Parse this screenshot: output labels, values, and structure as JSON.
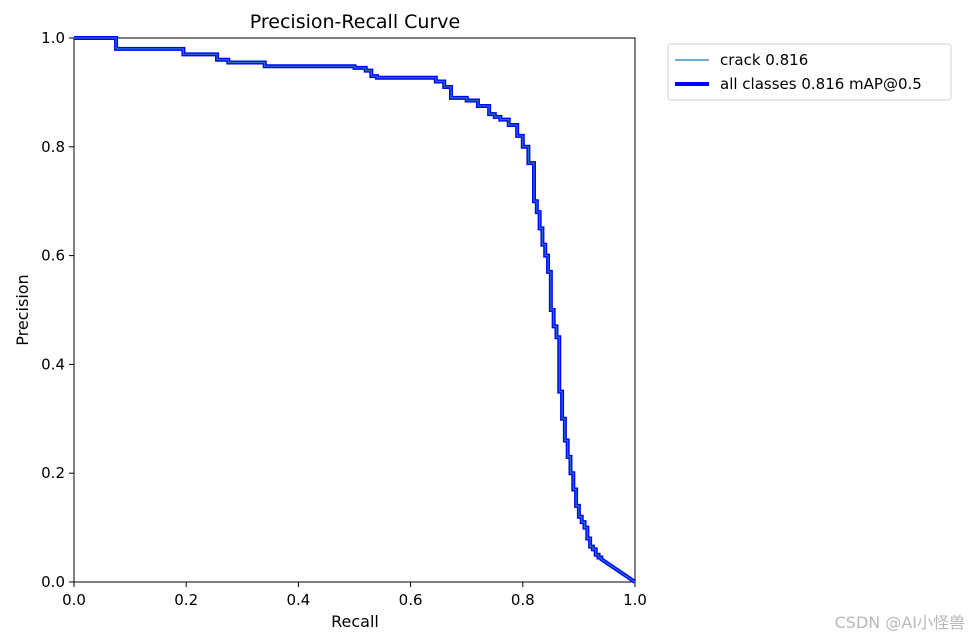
{
  "chart_data": {
    "type": "line",
    "title": "Precision-Recall Curve",
    "xlabel": "Recall",
    "ylabel": "Precision",
    "xlim": [
      0,
      1
    ],
    "ylim": [
      0,
      1
    ],
    "xticks": [
      "0.0",
      "0.2",
      "0.4",
      "0.6",
      "0.8",
      "1.0"
    ],
    "yticks": [
      "0.0",
      "0.2",
      "0.4",
      "0.6",
      "0.8",
      "1.0"
    ],
    "grid": false,
    "legend_position": "outside-upper-right",
    "series": [
      {
        "name": "crack 0.816",
        "color": "#1f77b4",
        "style": "thin",
        "x": [
          0,
          0.075,
          0.075,
          0.195,
          0.195,
          0.255,
          0.255,
          0.275,
          0.275,
          0.34,
          0.34,
          0.5,
          0.5,
          0.52,
          0.52,
          0.53,
          0.53,
          0.54,
          0.54,
          0.645,
          0.645,
          0.66,
          0.66,
          0.672,
          0.672,
          0.7,
          0.7,
          0.72,
          0.72,
          0.74,
          0.74,
          0.75,
          0.75,
          0.76,
          0.76,
          0.775,
          0.775,
          0.79,
          0.79,
          0.8,
          0.8,
          0.81,
          0.81,
          0.82,
          0.82,
          0.825,
          0.825,
          0.83,
          0.83,
          0.835,
          0.835,
          0.84,
          0.84,
          0.845,
          0.845,
          0.85,
          0.85,
          0.855,
          0.855,
          0.86,
          0.86,
          0.865,
          0.865,
          0.87,
          0.87,
          0.875,
          0.875,
          0.88,
          0.88,
          0.885,
          0.885,
          0.89,
          0.89,
          0.895,
          0.895,
          0.9,
          0.9,
          0.905,
          0.905,
          0.91,
          0.91,
          0.915,
          0.915,
          0.92,
          0.92,
          0.925,
          0.925,
          0.93,
          0.93,
          0.935,
          0.935,
          0.94,
          0.94,
          1.0
        ],
        "y": [
          1.0,
          1.0,
          0.98,
          0.98,
          0.97,
          0.97,
          0.96,
          0.96,
          0.955,
          0.955,
          0.948,
          0.948,
          0.945,
          0.945,
          0.94,
          0.94,
          0.93,
          0.93,
          0.927,
          0.927,
          0.92,
          0.92,
          0.91,
          0.91,
          0.89,
          0.89,
          0.885,
          0.885,
          0.875,
          0.875,
          0.86,
          0.86,
          0.855,
          0.855,
          0.85,
          0.85,
          0.84,
          0.84,
          0.82,
          0.82,
          0.8,
          0.8,
          0.77,
          0.77,
          0.7,
          0.7,
          0.68,
          0.68,
          0.65,
          0.65,
          0.62,
          0.62,
          0.6,
          0.6,
          0.57,
          0.57,
          0.5,
          0.5,
          0.47,
          0.47,
          0.45,
          0.45,
          0.35,
          0.35,
          0.3,
          0.3,
          0.26,
          0.26,
          0.23,
          0.23,
          0.2,
          0.2,
          0.17,
          0.17,
          0.14,
          0.14,
          0.12,
          0.12,
          0.11,
          0.11,
          0.1,
          0.1,
          0.08,
          0.08,
          0.065,
          0.065,
          0.06,
          0.06,
          0.05,
          0.05,
          0.045,
          0.045,
          0.042,
          0.0
        ]
      },
      {
        "name": "all classes 0.816 mAP@0.5",
        "color": "#0000ff",
        "style": "thick",
        "same_as": "crack 0.816"
      }
    ]
  },
  "watermark": "CSDN @AI小怪兽"
}
